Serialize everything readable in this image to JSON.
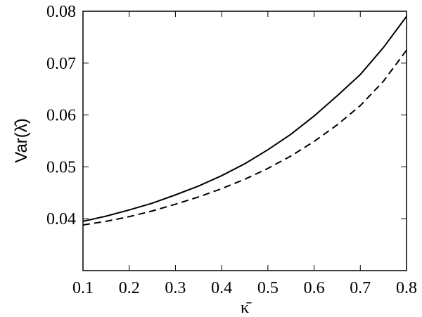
{
  "chart_data": {
    "type": "line",
    "xlabel": "κ̄",
    "ylabel": "Var(λ̂)",
    "x": [
      0.1,
      0.15,
      0.2,
      0.25,
      0.3,
      0.35,
      0.4,
      0.45,
      0.5,
      0.55,
      0.6,
      0.65,
      0.7,
      0.75,
      0.8
    ],
    "series": [
      {
        "color": "#000000",
        "dashed": false,
        "values": [
          0.0395,
          0.0405,
          0.0417,
          0.043,
          0.0446,
          0.0463,
          0.0483,
          0.0506,
          0.0533,
          0.0563,
          0.0598,
          0.0637,
          0.0678,
          0.073,
          0.079
        ]
      },
      {
        "color": "#000000",
        "dashed": true,
        "values": [
          0.0388,
          0.0395,
          0.0404,
          0.0415,
          0.0428,
          0.0442,
          0.0458,
          0.0476,
          0.0497,
          0.0521,
          0.0549,
          0.0581,
          0.0618,
          0.0665,
          0.0725
        ]
      }
    ],
    "xlim": [
      0.1,
      0.8
    ],
    "xticks": [
      0.1,
      0.2,
      0.3,
      0.4,
      0.5,
      0.6,
      0.7,
      0.8
    ],
    "ylim": [
      0.03,
      0.08
    ],
    "yticks": [
      0.04,
      0.05,
      0.06,
      0.07,
      0.08
    ]
  }
}
